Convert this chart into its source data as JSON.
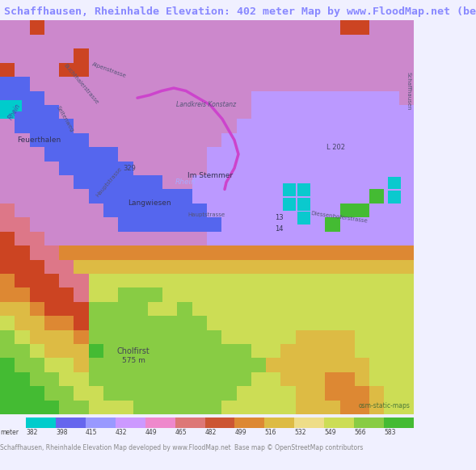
{
  "title": "Schaffhausen, Rheinhalde Elevation: 402 meter Map by www.FloodMap.net (be",
  "title_color": "#8888ff",
  "title_fontsize": 9.5,
  "bg_color": "#f0f0ff",
  "legend_labels": [
    "382",
    "398",
    "415",
    "432",
    "449",
    "465",
    "482",
    "499",
    "516",
    "532",
    "549",
    "566",
    "583"
  ],
  "legend_colors": [
    "#00cccc",
    "#6666ee",
    "#9999ff",
    "#cc99ff",
    "#ee88cc",
    "#dd7777",
    "#cc5533",
    "#dd8833",
    "#ddbb44",
    "#eedd88",
    "#ccdd55",
    "#88cc44",
    "#44bb33"
  ],
  "footer_text1": "Schaffhausen, Rheinhalde Elevation Map developed by www.FloodMap.net",
  "footer_text2": "Base map © OpenStreetMap contributors",
  "footer_color": "#888888",
  "meter_label": "meter",
  "osm_label": "osm-static-maps",
  "osm_label_color": "#336633",
  "map_bg": "#c8a8cc",
  "river_color": "#4455cc",
  "river_color2": "#6677dd",
  "teal_color": "#00cccc",
  "orange_color": "#cc4422",
  "purple_border": "#cc44cc",
  "green_color": "#44bb33",
  "yellow_green": "#88cc44",
  "light_green": "#ccdd55",
  "yellow": "#eedd88",
  "orange2": "#ddbb44",
  "red_orange": "#dd8833",
  "red2": "#cc5533",
  "pink": "#dd7777",
  "lavender": "#ee88cc",
  "cell_size": 18
}
